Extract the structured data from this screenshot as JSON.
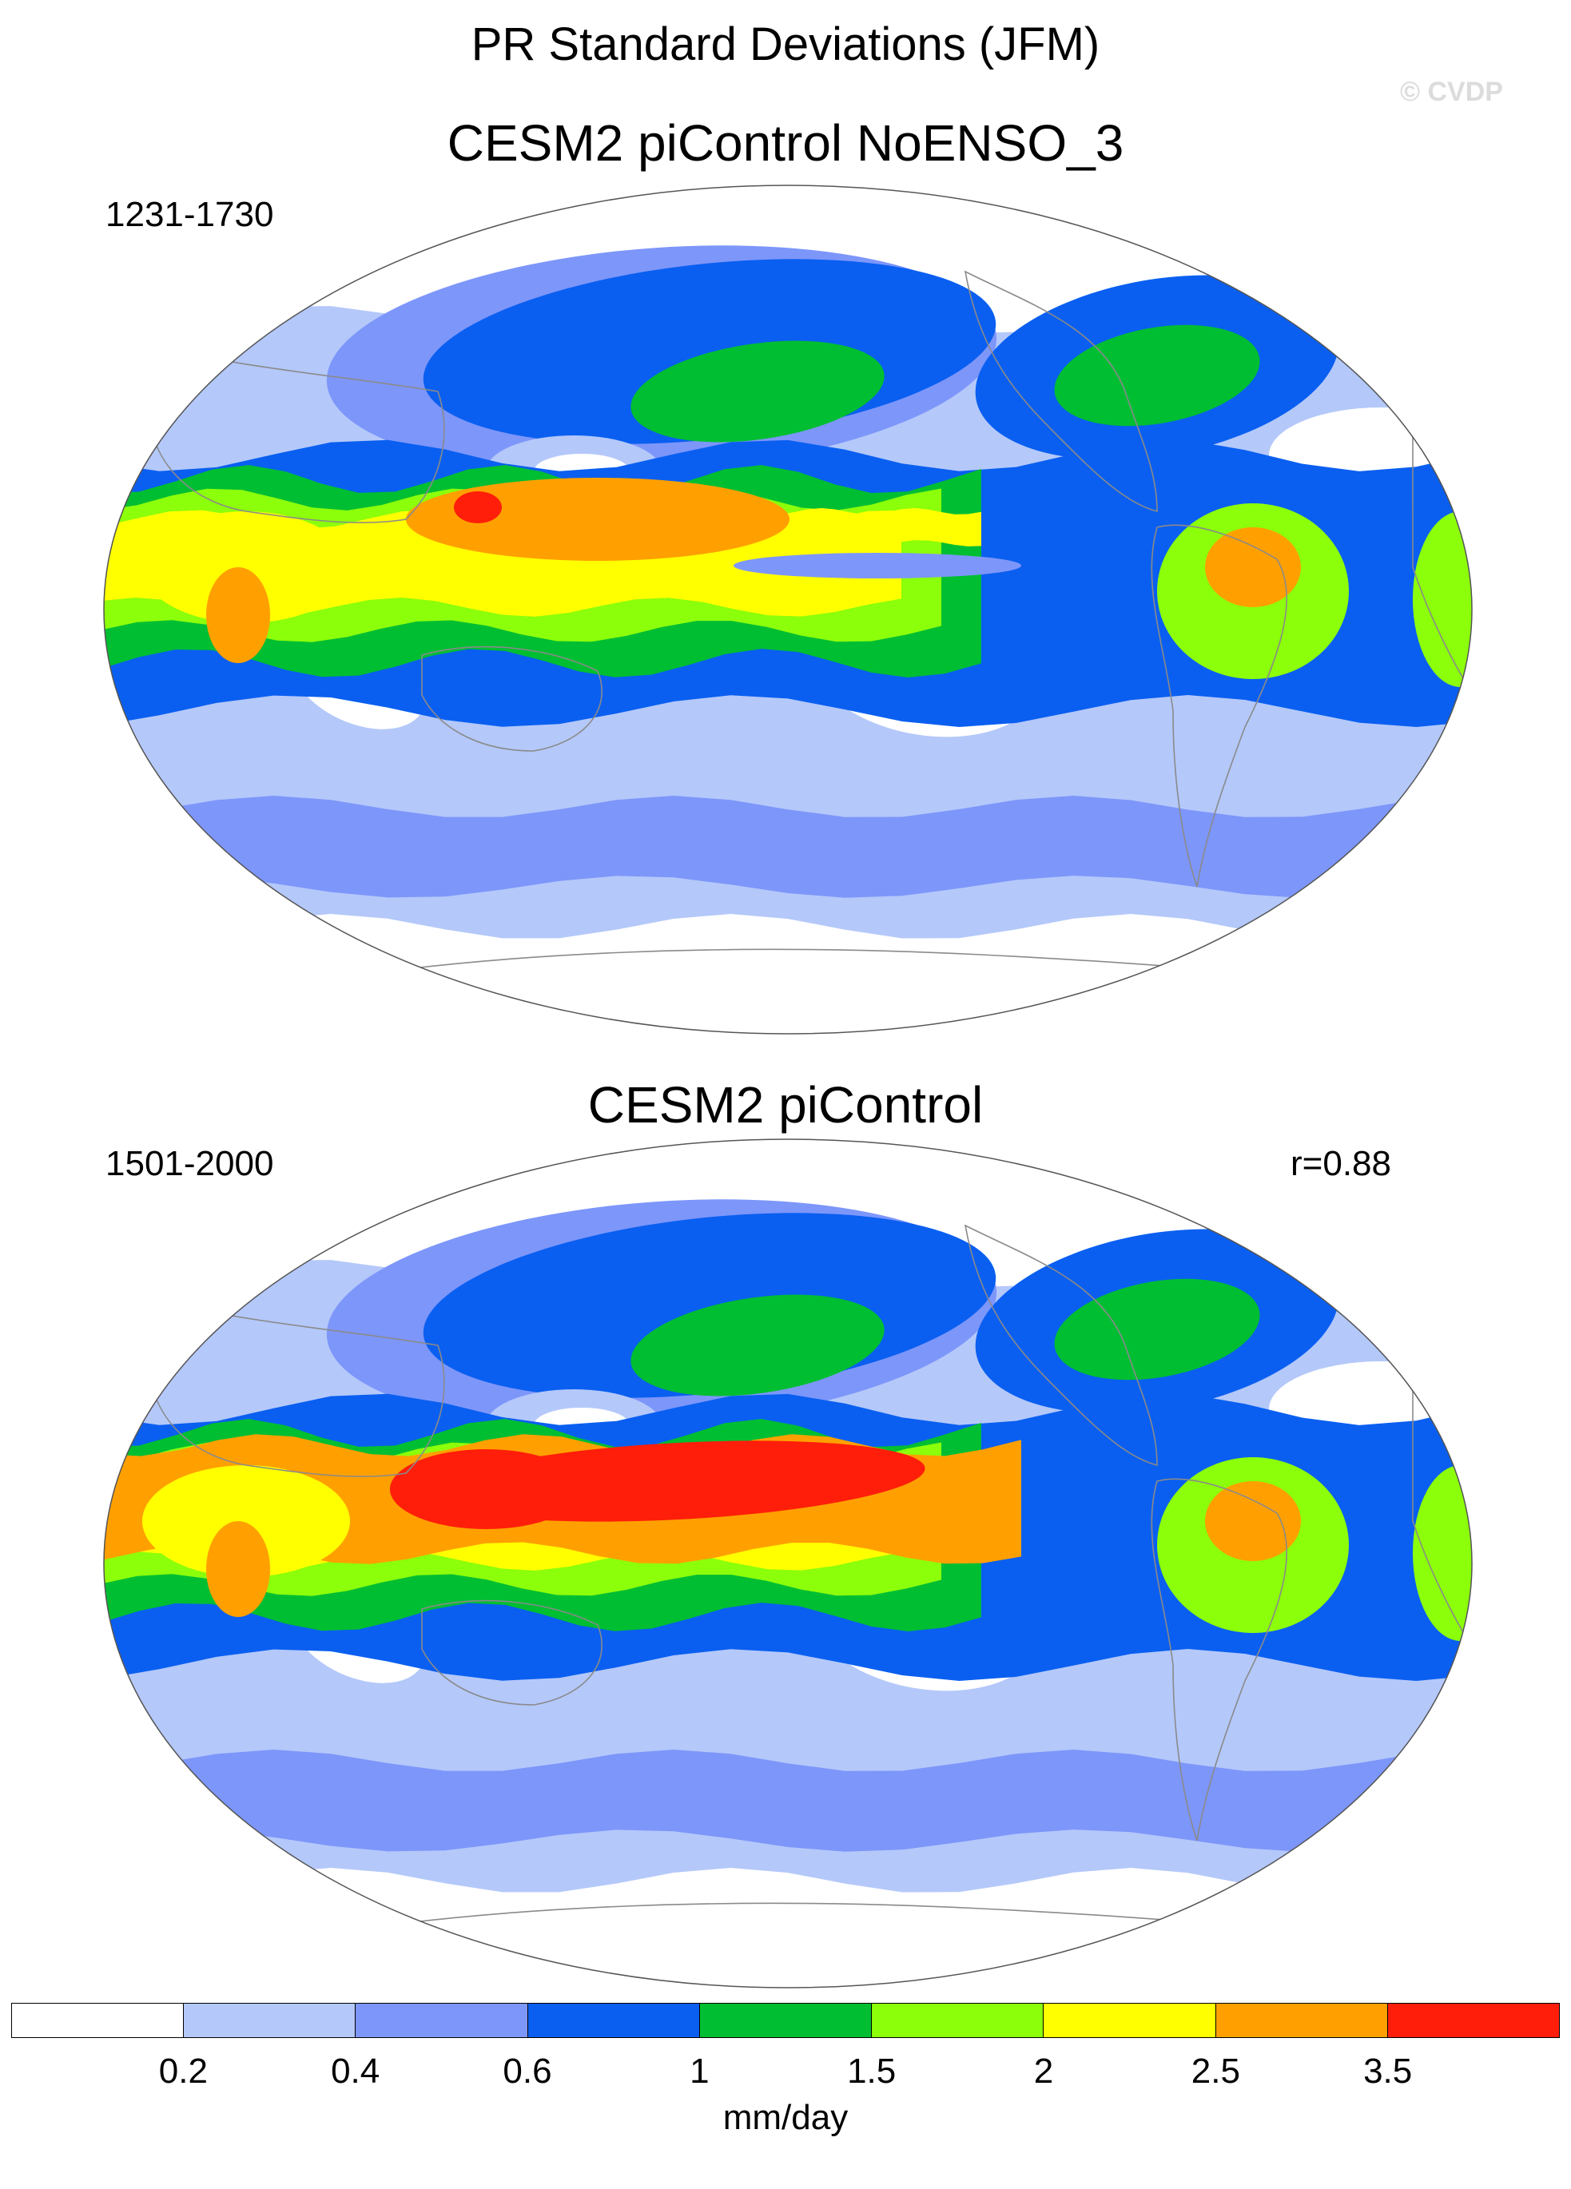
{
  "figure": {
    "title": "PR Standard Deviations (JFM)",
    "watermark": "© CVDP"
  },
  "panels": [
    {
      "title": "CESM2 piControl NoENSO_3",
      "period": "1231-1730",
      "correlation": ""
    },
    {
      "title": "CESM2 piControl",
      "period": "1501-2000",
      "correlation": "r=0.88"
    }
  ],
  "colorbar": {
    "units": "mm/day",
    "tick_labels": [
      "0.2",
      "0.4",
      "0.6",
      "1",
      "1.5",
      "2",
      "2.5",
      "3.5"
    ],
    "colors": [
      "#ffffff",
      "#b4c8fa",
      "#7d96fa",
      "#0a5ff0",
      "#00be32",
      "#8cff0a",
      "#ffff00",
      "#ffa000",
      "#ff1e0a"
    ]
  },
  "map": {
    "projection": "Robinson",
    "land_outline_color": "#8a8a8a",
    "border_color": "#555555"
  }
}
